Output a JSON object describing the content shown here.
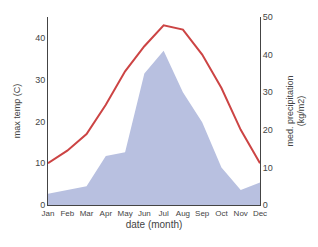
{
  "chart_data": {
    "type": "line",
    "xlabel": "date (month)",
    "ylabel": "max temp (C)",
    "y2label": "med. precipitation\n(kg/m2)",
    "categories": [
      "Jan",
      "Feb",
      "Mar",
      "Apr",
      "May",
      "Jun",
      "Jul",
      "Aug",
      "Sep",
      "Oct",
      "Nov",
      "Dec"
    ],
    "series": [
      {
        "type": "area",
        "axis": "y2",
        "color": "#b8c0e0",
        "values": [
          3,
          4,
          5,
          13,
          14,
          35,
          41,
          30,
          22,
          10,
          4,
          6
        ]
      },
      {
        "type": "line",
        "color": "#cc4444",
        "values": [
          10,
          13,
          17,
          24,
          32,
          38,
          43,
          42,
          36,
          28,
          18,
          10
        ]
      }
    ],
    "ylim": [
      0,
      45
    ],
    "yticks": [
      0,
      10,
      20,
      30,
      40
    ],
    "y2lim": [
      0,
      50
    ],
    "y2ticks": [
      0,
      10,
      20,
      30,
      40,
      50
    ],
    "grid": false
  }
}
